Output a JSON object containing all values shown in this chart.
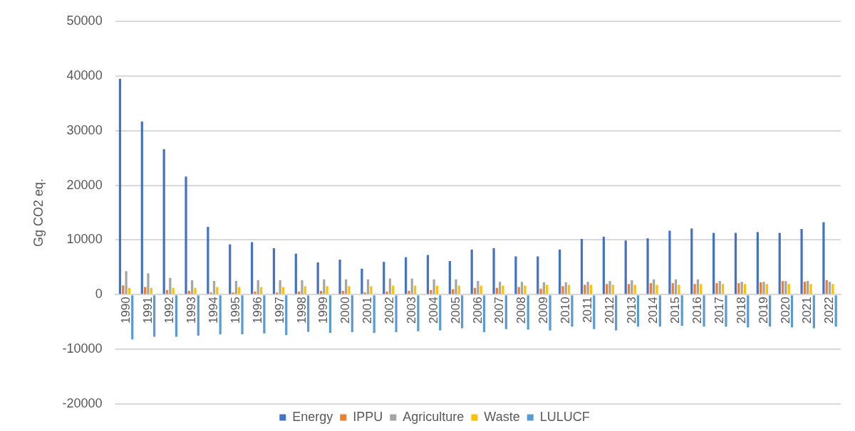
{
  "chart_data": {
    "type": "bar",
    "ylabel": "Gg CO2 eq.",
    "categories": [
      "1990",
      "1991",
      "1992",
      "1993",
      "1994",
      "1995",
      "1996",
      "1997",
      "1998",
      "1999",
      "2000",
      "2001",
      "2002",
      "2003",
      "2004",
      "2005",
      "2006",
      "2007",
      "2008",
      "2009",
      "2010",
      "2011",
      "2012",
      "2013",
      "2014",
      "2015",
      "2016",
      "2017",
      "2018",
      "2019",
      "2020",
      "2021",
      "2022"
    ],
    "series": [
      {
        "name": "Energy",
        "color": "#4472c4",
        "values": [
          39500,
          31700,
          26600,
          21600,
          12400,
          9200,
          9600,
          8500,
          7500,
          5900,
          6400,
          4750,
          6000,
          6850,
          7250,
          6150,
          8250,
          8500,
          7000,
          7000,
          8250,
          10200,
          10600,
          9900,
          10300,
          11700,
          12100,
          11300,
          11300,
          11450,
          11300,
          12000,
          13250
        ]
      },
      {
        "name": "IPPU",
        "color": "#ed7d31",
        "values": [
          1700,
          1400,
          850,
          700,
          400,
          400,
          550,
          400,
          550,
          700,
          700,
          400,
          550,
          700,
          850,
          1000,
          1250,
          1250,
          1400,
          1100,
          1550,
          1800,
          1950,
          1950,
          2100,
          2100,
          1950,
          2100,
          2100,
          2250,
          2500,
          2350,
          2650
        ]
      },
      {
        "name": "Agriculture",
        "color": "#a5a5a5",
        "values": [
          4300,
          3900,
          3050,
          2650,
          2500,
          2500,
          2650,
          2650,
          2650,
          2800,
          2800,
          2800,
          2950,
          2950,
          2800,
          2800,
          2500,
          2350,
          2350,
          2250,
          2250,
          2350,
          2500,
          2650,
          2800,
          2800,
          2800,
          2500,
          2350,
          2350,
          2500,
          2500,
          2350
        ]
      },
      {
        "name": "Waste",
        "color": "#ffc000",
        "values": [
          1250,
          1250,
          1250,
          1250,
          1400,
          1400,
          1400,
          1400,
          1550,
          1550,
          1550,
          1550,
          1650,
          1650,
          1650,
          1650,
          1650,
          1650,
          1650,
          1800,
          1800,
          1800,
          1800,
          1800,
          1800,
          1800,
          1950,
          1950,
          1950,
          1950,
          1950,
          1950,
          1950
        ]
      },
      {
        "name": "LULUCF",
        "color": "#5b9bd5",
        "values": [
          -8200,
          -7700,
          -7700,
          -7500,
          -7250,
          -7250,
          -7100,
          -7400,
          -6800,
          -7000,
          -6850,
          -7000,
          -6850,
          -6700,
          -6550,
          -6150,
          -6850,
          -6300,
          -6400,
          -6550,
          -5850,
          -6300,
          -6550,
          -5850,
          -5850,
          -5700,
          -5850,
          -5850,
          -6000,
          -5850,
          -6000,
          -6150,
          -5850
        ]
      }
    ],
    "ylim": [
      -20000,
      50000
    ],
    "yticks": [
      -20000,
      -10000,
      0,
      10000,
      20000,
      30000,
      40000,
      50000
    ],
    "grid": "y",
    "legend": "bottom"
  }
}
